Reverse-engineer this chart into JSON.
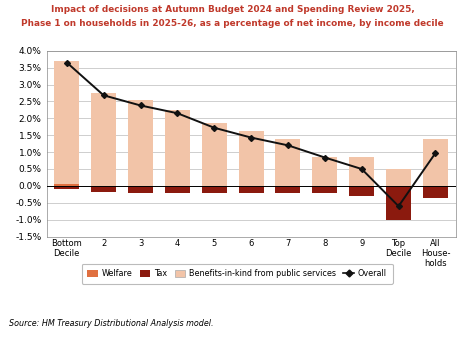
{
  "title_line1": "Impact of decisions at Autumn Budget 2024 and Spending Review 2025,",
  "title_line2": "Phase 1 on households in 2025-26, as a percentage of net income, by income decile",
  "categories": [
    "Bottom\nDecile",
    "2",
    "3",
    "4",
    "5",
    "6",
    "7",
    "8",
    "9",
    "Top\nDecile",
    "All\nHouse-\nholds"
  ],
  "welfare": [
    0.05,
    0.0,
    0.0,
    0.0,
    0.0,
    0.0,
    0.0,
    0.0,
    0.0,
    0.0,
    0.0
  ],
  "tax": [
    -0.08,
    -0.18,
    -0.22,
    -0.22,
    -0.22,
    -0.22,
    -0.2,
    -0.22,
    -0.3,
    -1.02,
    -0.35
  ],
  "benefits_in_kind": [
    3.7,
    2.75,
    2.55,
    2.25,
    1.85,
    1.62,
    1.38,
    0.85,
    0.85,
    0.5,
    1.38
  ],
  "overall": [
    3.65,
    2.68,
    2.38,
    2.15,
    1.72,
    1.43,
    1.2,
    0.84,
    0.5,
    -0.6,
    0.97
  ],
  "color_welfare": "#E07040",
  "color_tax": "#8B1A0E",
  "color_bik": "#F2C4A8",
  "color_overall": "#111111",
  "title_color": "#C0392B",
  "ylim_min": -1.5,
  "ylim_max": 4.0,
  "yticks": [
    -1.5,
    -1.0,
    -0.5,
    0.0,
    0.5,
    1.0,
    1.5,
    2.0,
    2.5,
    3.0,
    3.5,
    4.0
  ],
  "source_text": "Source: HM Treasury Distributional Analysis model.",
  "bar_width": 0.68
}
